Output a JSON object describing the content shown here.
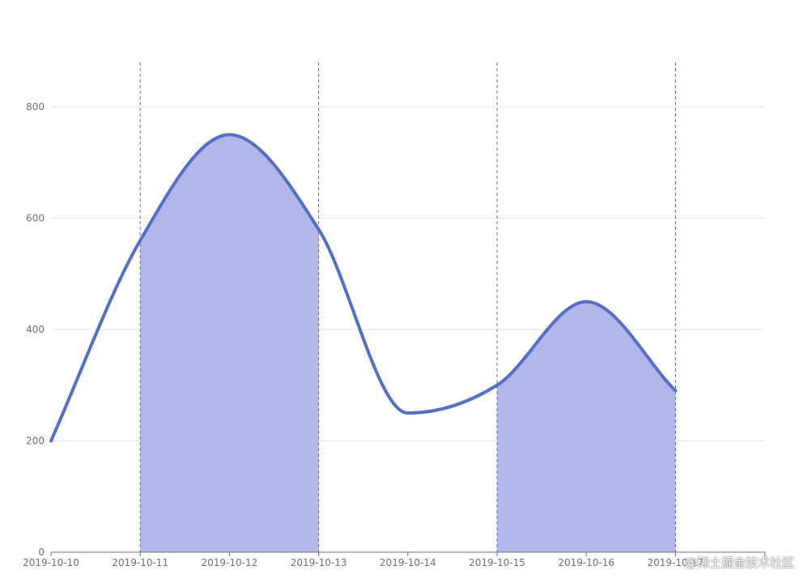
{
  "chart_data": {
    "type": "line",
    "categories": [
      "2019-10-10",
      "2019-10-11",
      "2019-10-12",
      "2019-10-13",
      "2019-10-14",
      "2019-10-15",
      "2019-10-16",
      "2019-10-17"
    ],
    "series": [
      {
        "values": [
          200,
          560,
          750,
          580,
          250,
          300,
          450,
          290
        ]
      }
    ],
    "smooth": true,
    "ylim": [
      0,
      800
    ],
    "yticks": [
      0,
      200,
      400,
      600,
      800
    ],
    "y_split_lines": true,
    "shaded_ranges": [
      {
        "from": "2019-10-11",
        "to": "2019-10-13"
      },
      {
        "from": "2019-10-15",
        "to": "2019-10-17"
      }
    ],
    "colors": {
      "line": "#5470c6",
      "area": "#b3b6e8",
      "marker_line": "#5470c6",
      "grid": "#e0e6f1",
      "axis": "#6e7079"
    },
    "title": "",
    "xlabel": "",
    "ylabel": ""
  },
  "watermark": "@稀土掘金技术社区"
}
